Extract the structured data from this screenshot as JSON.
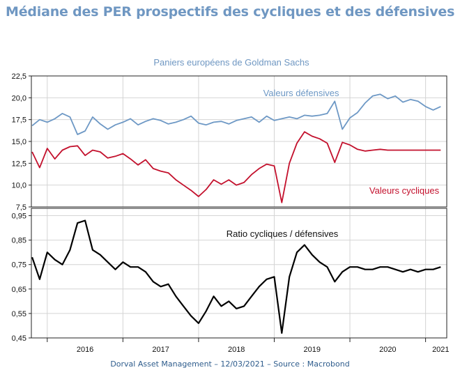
{
  "title": "Médiane des PER prospectifs des cycliques et des défensives",
  "footer": "Dorval Asset Management – 12/03/2021 –   Source : Macrobond",
  "chart_data": [
    {
      "type": "line",
      "subtitle": "Paniers européens de Goldman Sachs",
      "ylim": [
        7.5,
        22.5
      ],
      "yticks": [
        "7,5",
        "10,0",
        "12,5",
        "15,0",
        "17,5",
        "20,0",
        "22,5"
      ],
      "ytick_values": [
        7.5,
        10.0,
        12.5,
        15.0,
        17.5,
        20.0,
        22.5
      ],
      "xlim": [
        2015.79,
        2021.28
      ],
      "grid": true,
      "series": [
        {
          "name": "Valeurs défensives",
          "color": "#6d98c5",
          "x": [
            2015.8,
            2015.9,
            2016.0,
            2016.1,
            2016.2,
            2016.3,
            2016.4,
            2016.5,
            2016.6,
            2016.7,
            2016.8,
            2016.9,
            2017.0,
            2017.1,
            2017.2,
            2017.3,
            2017.4,
            2017.5,
            2017.6,
            2017.7,
            2017.8,
            2017.9,
            2018.0,
            2018.1,
            2018.2,
            2018.3,
            2018.4,
            2018.5,
            2018.6,
            2018.7,
            2018.8,
            2018.9,
            2019.0,
            2019.1,
            2019.2,
            2019.3,
            2019.4,
            2019.5,
            2019.6,
            2019.7,
            2019.8,
            2019.9,
            2020.0,
            2020.1,
            2020.2,
            2020.3,
            2020.4,
            2020.5,
            2020.6,
            2020.7,
            2020.8,
            2020.9,
            2021.0,
            2021.1,
            2021.2
          ],
          "y": [
            16.8,
            17.5,
            17.2,
            17.6,
            18.2,
            17.8,
            15.8,
            16.2,
            17.8,
            17.0,
            16.4,
            16.9,
            17.2,
            17.6,
            16.9,
            17.3,
            17.6,
            17.4,
            17.0,
            17.2,
            17.5,
            17.9,
            17.1,
            16.9,
            17.2,
            17.3,
            17.0,
            17.4,
            17.6,
            17.8,
            17.2,
            17.9,
            17.4,
            17.6,
            17.8,
            17.6,
            18.0,
            17.9,
            18.0,
            18.2,
            19.6,
            16.4,
            17.7,
            18.3,
            19.4,
            20.2,
            20.4,
            19.9,
            20.2,
            19.5,
            19.8,
            19.6,
            19.0,
            18.6,
            19.0
          ]
        },
        {
          "name": "Valeurs cycliques",
          "color": "#c3102c",
          "x": [
            2015.8,
            2015.9,
            2016.0,
            2016.1,
            2016.2,
            2016.3,
            2016.4,
            2016.5,
            2016.6,
            2016.7,
            2016.8,
            2016.9,
            2017.0,
            2017.1,
            2017.2,
            2017.3,
            2017.4,
            2017.5,
            2017.6,
            2017.7,
            2017.8,
            2017.9,
            2018.0,
            2018.1,
            2018.2,
            2018.3,
            2018.4,
            2018.5,
            2018.6,
            2018.7,
            2018.8,
            2018.9,
            2019.0,
            2019.1,
            2019.2,
            2019.3,
            2019.4,
            2019.5,
            2019.6,
            2019.7,
            2019.8,
            2019.9,
            2020.0,
            2020.1,
            2020.2,
            2020.3,
            2020.4,
            2020.5,
            2020.6,
            2020.7,
            2020.8,
            2020.9,
            2021.0,
            2021.1,
            2021.2
          ],
          "y": [
            13.8,
            12.0,
            14.2,
            13.0,
            14.0,
            14.4,
            14.5,
            13.4,
            14.0,
            13.8,
            13.1,
            13.3,
            13.6,
            13.0,
            12.3,
            12.9,
            11.9,
            11.6,
            11.4,
            10.6,
            10.0,
            9.4,
            8.7,
            9.5,
            10.6,
            10.1,
            10.6,
            10.0,
            10.3,
            11.2,
            11.9,
            12.4,
            12.2,
            8.0,
            12.5,
            14.8,
            16.1,
            15.6,
            15.3,
            14.8,
            12.6,
            14.9,
            14.6,
            14.1,
            13.9,
            14.0,
            14.1,
            14.0,
            14.0,
            14.0,
            14.0,
            14.0,
            14.0,
            14.0,
            14.0
          ]
        }
      ]
    },
    {
      "type": "line",
      "ylim": [
        0.45,
        0.98
      ],
      "yticks": [
        "0,45",
        "0,55",
        "0,65",
        "0,75",
        "0,85",
        "0,95"
      ],
      "ytick_values": [
        0.45,
        0.55,
        0.65,
        0.75,
        0.85,
        0.95
      ],
      "xlim": [
        2015.79,
        2021.28
      ],
      "xticks": [
        "2016",
        "2017",
        "2018",
        "2019",
        "2020",
        "2021"
      ],
      "xtick_centers": [
        2016.5,
        2017.5,
        2018.5,
        2019.5,
        2020.5,
        2021.2
      ],
      "grid": true,
      "series": [
        {
          "name": "Ratio cycliques / défensives",
          "color": "#000000",
          "x": [
            2015.8,
            2015.9,
            2016.0,
            2016.1,
            2016.2,
            2016.3,
            2016.4,
            2016.5,
            2016.6,
            2016.7,
            2016.8,
            2016.9,
            2017.0,
            2017.1,
            2017.2,
            2017.3,
            2017.4,
            2017.5,
            2017.6,
            2017.7,
            2017.8,
            2017.9,
            2018.0,
            2018.1,
            2018.2,
            2018.3,
            2018.4,
            2018.5,
            2018.6,
            2018.7,
            2018.8,
            2018.9,
            2019.0,
            2019.1,
            2019.2,
            2019.3,
            2019.4,
            2019.5,
            2019.6,
            2019.7,
            2019.8,
            2019.9,
            2020.0,
            2020.1,
            2020.2,
            2020.3,
            2020.4,
            2020.5,
            2020.6,
            2020.7,
            2020.8,
            2020.9,
            2021.0,
            2021.1,
            2021.2
          ],
          "y": [
            0.78,
            0.69,
            0.8,
            0.77,
            0.75,
            0.81,
            0.92,
            0.93,
            0.81,
            0.79,
            0.76,
            0.73,
            0.76,
            0.74,
            0.74,
            0.72,
            0.68,
            0.66,
            0.67,
            0.62,
            0.58,
            0.54,
            0.51,
            0.56,
            0.62,
            0.58,
            0.6,
            0.57,
            0.58,
            0.62,
            0.66,
            0.69,
            0.7,
            0.47,
            0.7,
            0.8,
            0.83,
            0.79,
            0.76,
            0.74,
            0.68,
            0.72,
            0.74,
            0.74,
            0.73,
            0.73,
            0.74,
            0.74,
            0.73,
            0.72,
            0.73,
            0.72,
            0.73,
            0.73,
            0.74
          ]
        }
      ]
    }
  ]
}
